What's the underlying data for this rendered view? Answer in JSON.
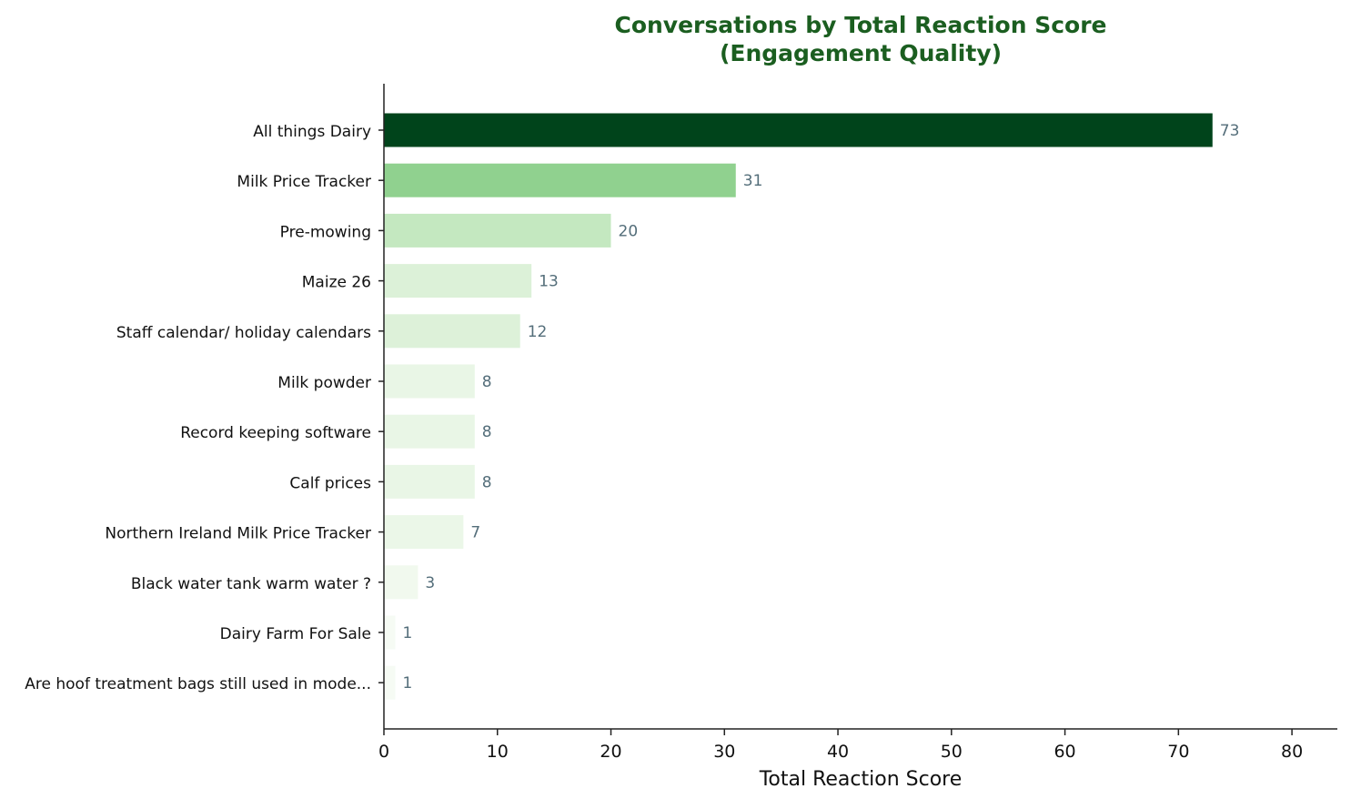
{
  "chart_data": {
    "type": "bar",
    "orientation": "horizontal",
    "title_line1": "Conversations by Total Reaction Score",
    "title_line2": "(Engagement Quality)",
    "xlabel": "Total Reaction Score",
    "ylabel": "",
    "xlim": [
      0,
      84
    ],
    "xticks": [
      0,
      10,
      20,
      30,
      40,
      50,
      60,
      70,
      80
    ],
    "grid": false,
    "categories": [
      "All things Dairy",
      "Milk Price Tracker",
      "Pre-mowing",
      "Maize 26",
      "Staff calendar/ holiday calendars",
      "Milk powder",
      "Record keeping software",
      "Calf prices",
      "Northern Ireland Milk Price Tracker",
      "Black water tank warm water ?",
      "Dairy Farm For Sale",
      "Are hoof treatment bags still used in mode..."
    ],
    "values": [
      73,
      31,
      20,
      13,
      12,
      8,
      8,
      8,
      7,
      3,
      1,
      1
    ],
    "colors": {
      "title": "#1b5e20",
      "value_label": "#546e7a",
      "axis": "#222222",
      "bars": [
        "#00441b",
        "#90d18f",
        "#c4e8c0",
        "#dcf1d8",
        "#ddf1d9",
        "#e9f6e6",
        "#e9f6e6",
        "#e9f6e6",
        "#ebf7e8",
        "#f1f9ee",
        "#f6fbf4",
        "#f6fbf4"
      ]
    }
  }
}
